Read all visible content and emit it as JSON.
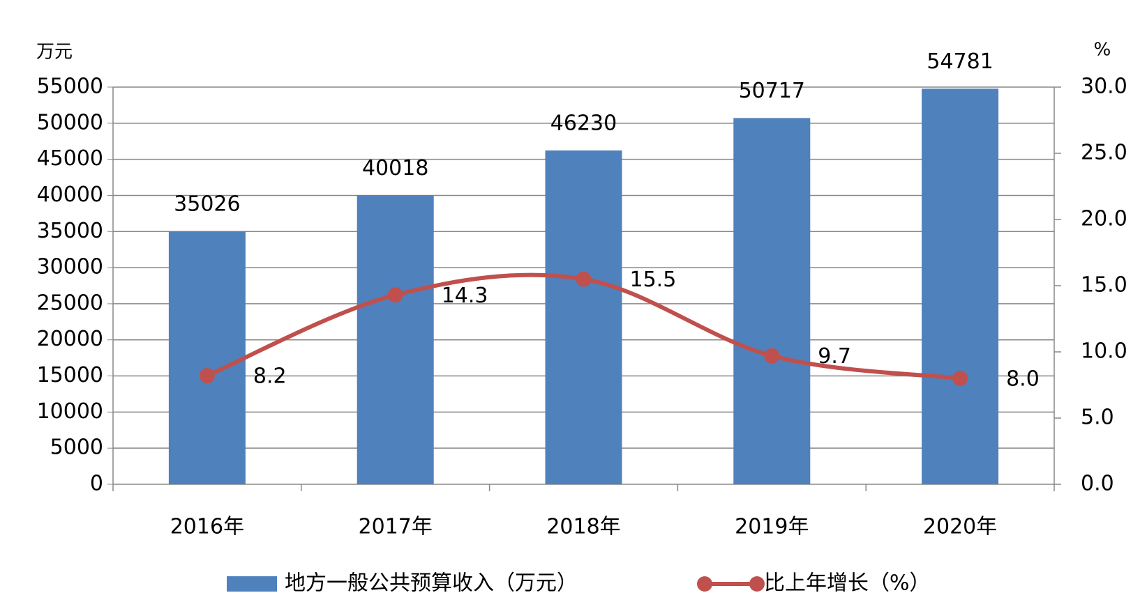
{
  "chart_data": {
    "type": "bar-line",
    "y_unit": "万元",
    "y2_unit": "%",
    "categories": [
      "2016年",
      "2017年",
      "2018年",
      "2019年",
      "2020年"
    ],
    "series": [
      {
        "name": "地方一般公共预算收入（万元）",
        "type": "bar",
        "color": "#4f81bd",
        "values": [
          35026,
          40018,
          46230,
          50717,
          54781
        ]
      },
      {
        "name": "比上年增长（%）",
        "type": "line",
        "axis": "y2",
        "color": "#c0504d",
        "values": [
          8.2,
          14.3,
          15.5,
          9.7,
          8.0
        ],
        "value_labels": [
          "8.2",
          "14.3",
          "15.5",
          "9.7",
          "8.0"
        ]
      }
    ],
    "ylim": [
      0,
      55000
    ],
    "yticks": [
      0,
      5000,
      10000,
      15000,
      20000,
      25000,
      30000,
      35000,
      40000,
      45000,
      50000,
      55000
    ],
    "y2lim": [
      0,
      30
    ],
    "y2ticks": [
      {
        "value": 0,
        "label": "0.0"
      },
      {
        "value": 5,
        "label": "5.0"
      },
      {
        "value": 10,
        "label": "10.0"
      },
      {
        "value": 15,
        "label": "15.0"
      },
      {
        "value": 20,
        "label": "20.0"
      },
      {
        "value": 25,
        "label": "25.0"
      },
      {
        "value": 30,
        "label": "30.0"
      }
    ],
    "grid": true,
    "legend": "bottom"
  }
}
